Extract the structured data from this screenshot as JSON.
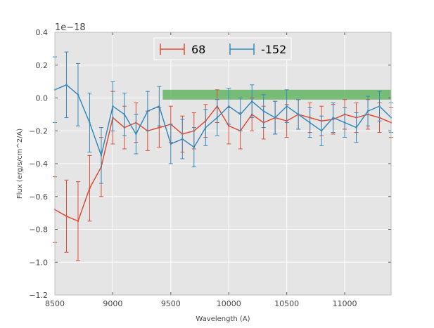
{
  "chart_data": {
    "type": "line",
    "title": "",
    "xlabel": "Wavelength (A)",
    "ylabel": "Flux (erg/s/cm^2/A)",
    "offset_text": "1e−18",
    "xlim": [
      8500,
      11400
    ],
    "ylim": [
      -1.2,
      0.4
    ],
    "x_ticks": [
      8500,
      9000,
      9500,
      10000,
      10500,
      11000
    ],
    "x_tick_labels": [
      "8500",
      "9000",
      "9500",
      "10000",
      "10500",
      "11000"
    ],
    "y_ticks": [
      -1.2,
      -1.0,
      -0.8,
      -0.6,
      -0.4,
      -0.2,
      0.0,
      0.2,
      0.4
    ],
    "y_tick_labels": [
      "−1.2",
      "−1.0",
      "−0.8",
      "−0.6",
      "−0.4",
      "−0.2",
      "0.0",
      "0.2",
      "0.4"
    ],
    "grid": true,
    "legend_position": "top-center",
    "band": {
      "x0": 9430,
      "x1": 11400,
      "y0": -0.01,
      "y1": 0.05,
      "color": "#2ca02c"
    },
    "series": [
      {
        "name": "68",
        "color": "#e24a33",
        "x": [
          8500,
          8600,
          8700,
          8800,
          8900,
          9000,
          9100,
          9200,
          9300,
          9400,
          9500,
          9600,
          9700,
          9800,
          9900,
          10000,
          10100,
          10200,
          10300,
          10400,
          10500,
          10600,
          10700,
          10800,
          10900,
          11000,
          11100,
          11200,
          11300,
          11400
        ],
        "y": [
          -0.68,
          -0.72,
          -0.75,
          -0.55,
          -0.42,
          -0.12,
          -0.18,
          -0.15,
          -0.2,
          -0.18,
          -0.16,
          -0.22,
          -0.2,
          -0.14,
          -0.05,
          -0.17,
          -0.2,
          -0.1,
          -0.15,
          -0.12,
          -0.14,
          -0.1,
          -0.12,
          -0.14,
          -0.13,
          -0.1,
          -0.12,
          -0.1,
          -0.12,
          -0.15
        ],
        "err": [
          0.2,
          0.22,
          0.24,
          0.2,
          0.18,
          0.16,
          0.13,
          0.12,
          0.12,
          0.12,
          0.11,
          0.11,
          0.11,
          0.1,
          0.1,
          0.11,
          0.11,
          0.1,
          0.1,
          0.1,
          0.1,
          0.09,
          0.09,
          0.09,
          0.09,
          0.09,
          0.09,
          0.09,
          0.09,
          0.09
        ]
      },
      {
        "name": "-152",
        "color": "#348abd",
        "x": [
          8500,
          8600,
          8700,
          8800,
          8900,
          9000,
          9100,
          9200,
          9300,
          9400,
          9500,
          9600,
          9700,
          9800,
          9900,
          10000,
          10100,
          10200,
          10300,
          10400,
          10500,
          10600,
          10700,
          10800,
          10900,
          11000,
          11100,
          11200,
          11300,
          11400
        ],
        "y": [
          0.05,
          0.08,
          0.02,
          -0.15,
          -0.35,
          -0.05,
          -0.1,
          -0.22,
          -0.08,
          -0.05,
          -0.28,
          -0.25,
          -0.3,
          -0.18,
          -0.12,
          -0.05,
          -0.1,
          -0.02,
          -0.08,
          -0.12,
          -0.05,
          -0.1,
          -0.15,
          -0.2,
          -0.12,
          -0.15,
          -0.18,
          -0.08,
          -0.05,
          -0.12
        ],
        "err": [
          0.2,
          0.2,
          0.19,
          0.18,
          0.17,
          0.15,
          0.13,
          0.12,
          0.12,
          0.12,
          0.12,
          0.12,
          0.12,
          0.11,
          0.11,
          0.11,
          0.1,
          0.1,
          0.1,
          0.1,
          0.1,
          0.09,
          0.09,
          0.09,
          0.09,
          0.09,
          0.09,
          0.09,
          0.09,
          0.09
        ]
      }
    ]
  }
}
